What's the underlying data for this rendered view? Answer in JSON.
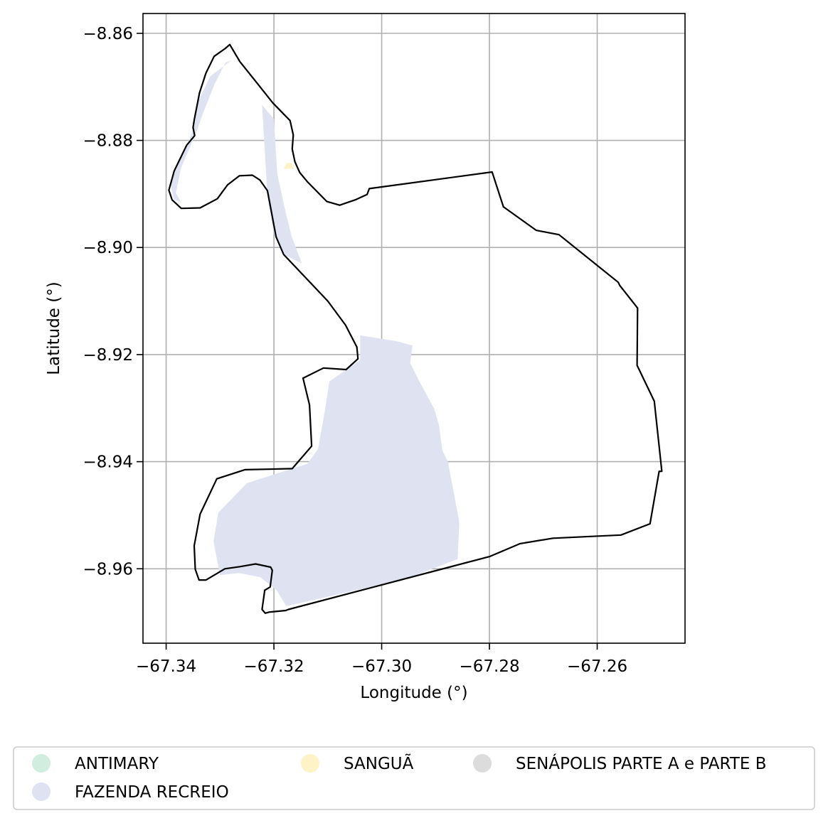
{
  "chart_data": {
    "type": "map",
    "xlabel": "Longitude (°)",
    "ylabel": "Latitude (°)",
    "xlim": [
      -67.3443,
      -67.2437
    ],
    "ylim": [
      -8.9739,
      -8.8563
    ],
    "x_ticks": [
      -67.34,
      -67.32,
      -67.3,
      -67.28,
      -67.26
    ],
    "x_tick_labels": [
      "−67.34",
      "−67.32",
      "−67.30",
      "−67.28",
      "−67.26"
    ],
    "y_ticks": [
      -8.86,
      -8.88,
      -8.9,
      -8.92,
      -8.94,
      -8.96
    ],
    "y_tick_labels": [
      "−8.86",
      "−8.88",
      "−8.90",
      "−8.92",
      "−8.94",
      "−8.96"
    ],
    "grid": true,
    "legend_position": "bottom",
    "legend": [
      {
        "label": "ANTIMARY",
        "color": "#d0ede0"
      },
      {
        "label": "FAZENDA RECREIO",
        "color": "#dfe3f1"
      },
      {
        "label": "SANGUÃ",
        "color": "#fdf3c6"
      },
      {
        "label": "SENÁPOLIS PARTE A e PARTE B",
        "color": "#dcdcdc"
      }
    ],
    "boundary_color": "#000000",
    "boundary": [
      [
        -67.3282,
        -8.8621
      ],
      [
        -67.3263,
        -8.8653
      ],
      [
        -67.3232,
        -8.8692
      ],
      [
        -67.3202,
        -8.873
      ],
      [
        -67.317,
        -8.8763
      ],
      [
        -67.3164,
        -8.879
      ],
      [
        -67.3166,
        -8.8816
      ],
      [
        -67.3161,
        -8.884
      ],
      [
        -67.3152,
        -8.886
      ],
      [
        -67.3138,
        -8.8877
      ],
      [
        -67.3102,
        -8.8914
      ],
      [
        -67.3078,
        -8.8921
      ],
      [
        -67.3049,
        -8.8911
      ],
      [
        -67.3027,
        -8.8901
      ],
      [
        -67.3023,
        -8.889
      ],
      [
        -67.2795,
        -8.8859
      ],
      [
        -67.2774,
        -8.8924
      ],
      [
        -67.2713,
        -8.8968
      ],
      [
        -67.2671,
        -8.8976
      ],
      [
        -67.2561,
        -8.9065
      ],
      [
        -67.2558,
        -8.9071
      ],
      [
        -67.2525,
        -8.9113
      ],
      [
        -67.2526,
        -8.922
      ],
      [
        -67.2494,
        -8.9287
      ],
      [
        -67.248,
        -8.9418
      ],
      [
        -67.2485,
        -8.9418
      ],
      [
        -67.2502,
        -8.9516
      ],
      [
        -67.2556,
        -8.9537
      ],
      [
        -67.2682,
        -8.9543
      ],
      [
        -67.2743,
        -8.9553
      ],
      [
        -67.2799,
        -8.9577
      ],
      [
        -67.3173,
        -8.9676
      ],
      [
        -67.3178,
        -8.9678
      ],
      [
        -67.3209,
        -8.9681
      ],
      [
        -67.3216,
        -8.9683
      ],
      [
        -67.3222,
        -8.9676
      ],
      [
        -67.3217,
        -8.964
      ],
      [
        -67.3207,
        -8.9634
      ],
      [
        -67.3203,
        -8.9603
      ],
      [
        -67.3206,
        -8.9597
      ],
      [
        -67.3234,
        -8.9591
      ],
      [
        -67.3263,
        -8.9596
      ],
      [
        -67.3291,
        -8.96
      ],
      [
        -67.3326,
        -8.9621
      ],
      [
        -67.3339,
        -8.9621
      ],
      [
        -67.3346,
        -8.9601
      ],
      [
        -67.3348,
        -8.9557
      ],
      [
        -67.3337,
        -8.9498
      ],
      [
        -67.3306,
        -8.9432
      ],
      [
        -67.3254,
        -8.9415
      ],
      [
        -67.3166,
        -8.9413
      ],
      [
        -67.313,
        -8.9371
      ],
      [
        -67.3134,
        -8.9294
      ],
      [
        -67.3146,
        -8.9244
      ],
      [
        -67.3108,
        -8.9225
      ],
      [
        -67.3066,
        -8.9228
      ],
      [
        -67.3044,
        -8.9208
      ],
      [
        -67.3046,
        -8.9186
      ],
      [
        -67.3067,
        -8.9145
      ],
      [
        -67.31,
        -8.91
      ],
      [
        -67.3182,
        -8.9013
      ],
      [
        -67.3196,
        -8.898
      ],
      [
        -67.3212,
        -8.8894
      ],
      [
        -67.3226,
        -8.8874
      ],
      [
        -67.324,
        -8.8865
      ],
      [
        -67.3264,
        -8.8866
      ],
      [
        -67.3286,
        -8.8883
      ],
      [
        -67.3305,
        -8.8909
      ],
      [
        -67.3337,
        -8.8926
      ],
      [
        -67.3372,
        -8.8927
      ],
      [
        -67.3389,
        -8.8911
      ],
      [
        -67.3395,
        -8.8893
      ],
      [
        -67.3385,
        -8.8857
      ],
      [
        -67.3362,
        -8.8809
      ],
      [
        -67.3347,
        -8.8791
      ],
      [
        -67.335,
        -8.8776
      ],
      [
        -67.3348,
        -8.8762
      ],
      [
        -67.3338,
        -8.8711
      ],
      [
        -67.3326,
        -8.8674
      ],
      [
        -67.3311,
        -8.8643
      ],
      [
        -67.329,
        -8.8628
      ],
      [
        -67.3282,
        -8.8621
      ]
    ],
    "fazenda_recreio": [
      [
        -67.304,
        -8.9164
      ],
      [
        -67.2972,
        -8.9175
      ],
      [
        -67.2943,
        -8.9183
      ],
      [
        -67.2947,
        -8.9216
      ],
      [
        -67.2929,
        -8.9252
      ],
      [
        -67.2903,
        -8.93
      ],
      [
        -67.2894,
        -8.933
      ],
      [
        -67.2887,
        -8.938
      ],
      [
        -67.2877,
        -8.94
      ],
      [
        -67.2856,
        -8.9512
      ],
      [
        -67.2859,
        -8.9582
      ],
      [
        -67.294,
        -8.9613
      ],
      [
        -67.303,
        -8.9636
      ],
      [
        -67.3177,
        -8.967
      ],
      [
        -67.3195,
        -8.964
      ],
      [
        -67.3225,
        -8.9616
      ],
      [
        -67.3265,
        -8.9608
      ],
      [
        -67.33,
        -8.9612
      ],
      [
        -67.3312,
        -8.9549
      ],
      [
        -67.3303,
        -8.9495
      ],
      [
        -67.325,
        -8.944
      ],
      [
        -67.3138,
        -8.9404
      ],
      [
        -67.3118,
        -8.9376
      ],
      [
        -67.3105,
        -8.9302
      ],
      [
        -67.3097,
        -8.925
      ],
      [
        -67.304,
        -8.921
      ],
      [
        -67.304,
        -8.9164
      ]
    ],
    "fazenda_recreio_north": [
      [
        -67.3222,
        -8.8734
      ],
      [
        -67.32,
        -8.876
      ],
      [
        -67.3194,
        -8.886
      ],
      [
        -67.319,
        -8.888
      ],
      [
        -67.3178,
        -8.8935
      ],
      [
        -67.3167,
        -8.898
      ],
      [
        -67.3148,
        -8.903
      ],
      [
        -67.3182,
        -8.9013
      ],
      [
        -67.32,
        -8.8975
      ],
      [
        -67.3212,
        -8.8905
      ],
      [
        -67.3222,
        -8.8734
      ]
    ],
    "fazenda_recreio_nw": [
      [
        -67.3278,
        -8.865
      ],
      [
        -67.329,
        -8.8655
      ],
      [
        -67.331,
        -8.8695
      ],
      [
        -67.333,
        -8.8745
      ],
      [
        -67.3346,
        -8.879
      ],
      [
        -67.3372,
        -8.885
      ],
      [
        -67.3382,
        -8.8898
      ],
      [
        -67.3372,
        -8.8916
      ],
      [
        -67.3386,
        -8.891
      ],
      [
        -67.3392,
        -8.888
      ],
      [
        -67.338,
        -8.8845
      ],
      [
        -67.336,
        -8.8806
      ],
      [
        -67.335,
        -8.878
      ],
      [
        -67.3342,
        -8.873
      ],
      [
        -67.3318,
        -8.868
      ],
      [
        -67.3278,
        -8.865
      ]
    ],
    "sangua": [
      [
        -67.3176,
        -8.8842
      ],
      [
        -67.3167,
        -8.8842
      ],
      [
        -67.3162,
        -8.8853
      ],
      [
        -67.3182,
        -8.8853
      ]
    ]
  }
}
